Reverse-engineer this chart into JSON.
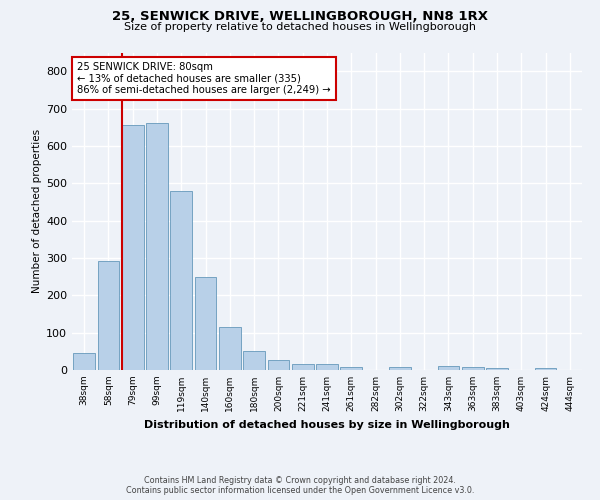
{
  "title": "25, SENWICK DRIVE, WELLINGBOROUGH, NN8 1RX",
  "subtitle": "Size of property relative to detached houses in Wellingborough",
  "xlabel": "Distribution of detached houses by size in Wellingborough",
  "ylabel": "Number of detached properties",
  "categories": [
    "38sqm",
    "58sqm",
    "79sqm",
    "99sqm",
    "119sqm",
    "140sqm",
    "160sqm",
    "180sqm",
    "200sqm",
    "221sqm",
    "241sqm",
    "261sqm",
    "282sqm",
    "302sqm",
    "322sqm",
    "343sqm",
    "363sqm",
    "383sqm",
    "403sqm",
    "424sqm",
    "444sqm"
  ],
  "values": [
    45,
    293,
    655,
    660,
    480,
    250,
    115,
    50,
    27,
    15,
    15,
    8,
    0,
    8,
    0,
    10,
    8,
    5,
    0,
    5,
    0
  ],
  "bar_color": "#b8d0e8",
  "bar_edge_color": "#6699bb",
  "vline_color": "#cc0000",
  "annotation_line1": "25 SENWICK DRIVE: 80sqm",
  "annotation_line2": "← 13% of detached houses are smaller (335)",
  "annotation_line3": "86% of semi-detached houses are larger (2,249) →",
  "annotation_box_color": "#ffffff",
  "annotation_box_edge_color": "#cc0000",
  "ylim": [
    0,
    850
  ],
  "yticks": [
    0,
    100,
    200,
    300,
    400,
    500,
    600,
    700,
    800
  ],
  "background_color": "#eef2f8",
  "grid_color": "#ffffff",
  "footer_line1": "Contains HM Land Registry data © Crown copyright and database right 2024.",
  "footer_line2": "Contains public sector information licensed under the Open Government Licence v3.0."
}
